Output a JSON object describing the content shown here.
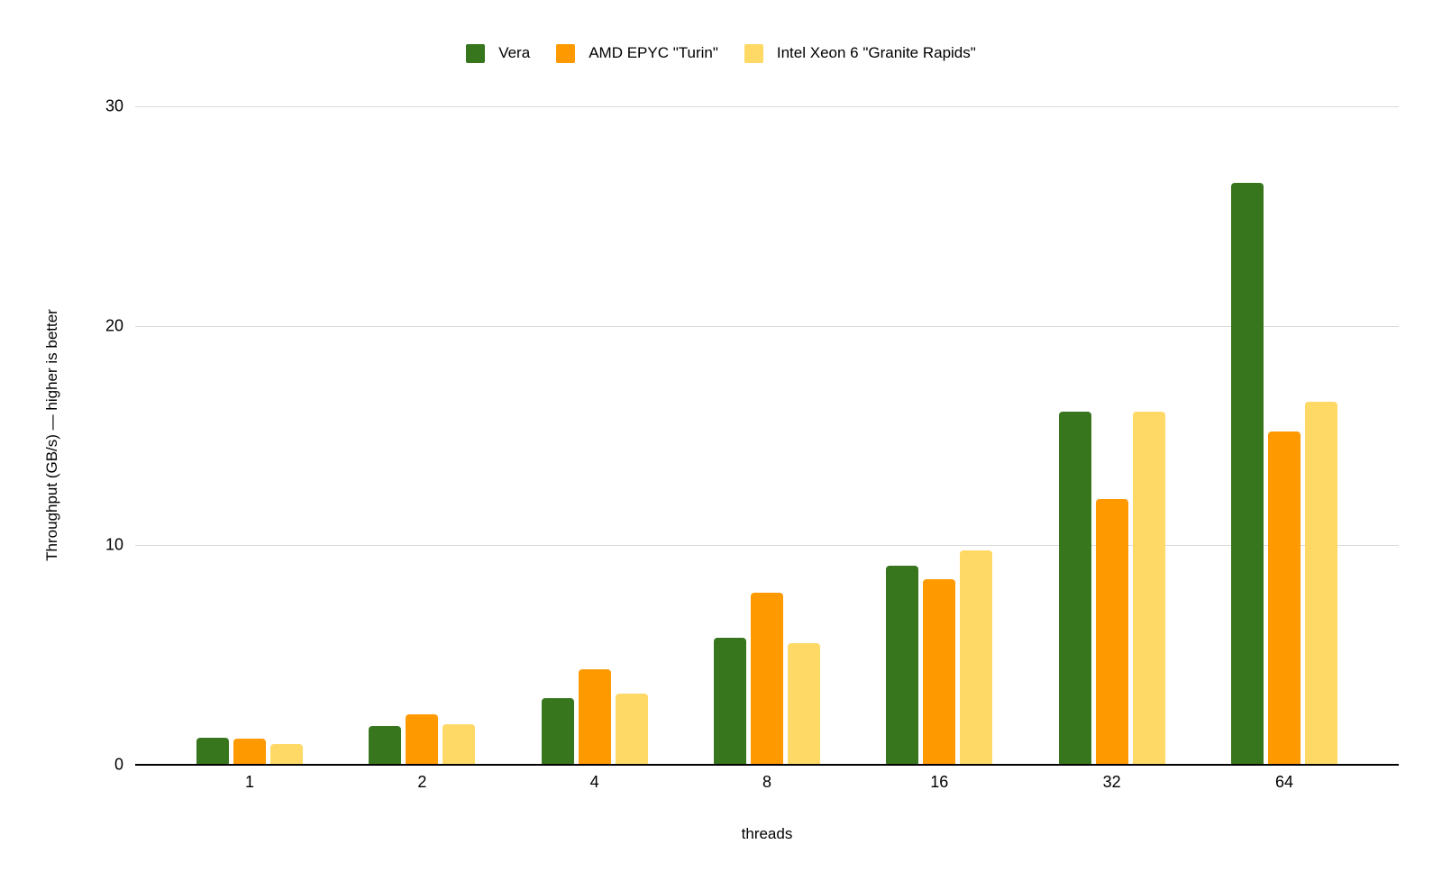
{
  "chart_data": {
    "type": "bar",
    "xlabel": "threads",
    "ylabel": "Throughput (GB/s) — higher is better",
    "categories": [
      "1",
      "2",
      "4",
      "8",
      "16",
      "32",
      "64"
    ],
    "series": [
      {
        "name": "Vera",
        "color": "#38761D",
        "values": [
          1.25,
          1.75,
          3.05,
          5.8,
          9.05,
          16.1,
          26.5
        ]
      },
      {
        "name": "AMD EPYC \"Turin\"",
        "color": "#FF9900",
        "values": [
          1.2,
          2.3,
          4.35,
          7.85,
          8.45,
          12.1,
          15.2
        ]
      },
      {
        "name": "Intel Xeon 6 \"Granite Rapids\"",
        "color": "#FFD966",
        "values": [
          0.95,
          1.85,
          3.25,
          5.55,
          9.75,
          16.1,
          16.55
        ]
      }
    ],
    "ylim": [
      0,
      30
    ],
    "yticks": [
      0,
      10,
      20,
      30
    ],
    "grid": true,
    "legend_position": "top",
    "colors": {
      "gridline": "#D9D9D9",
      "axis_line": "#000000",
      "text": "#000000",
      "background": "#FFFFFF"
    }
  }
}
